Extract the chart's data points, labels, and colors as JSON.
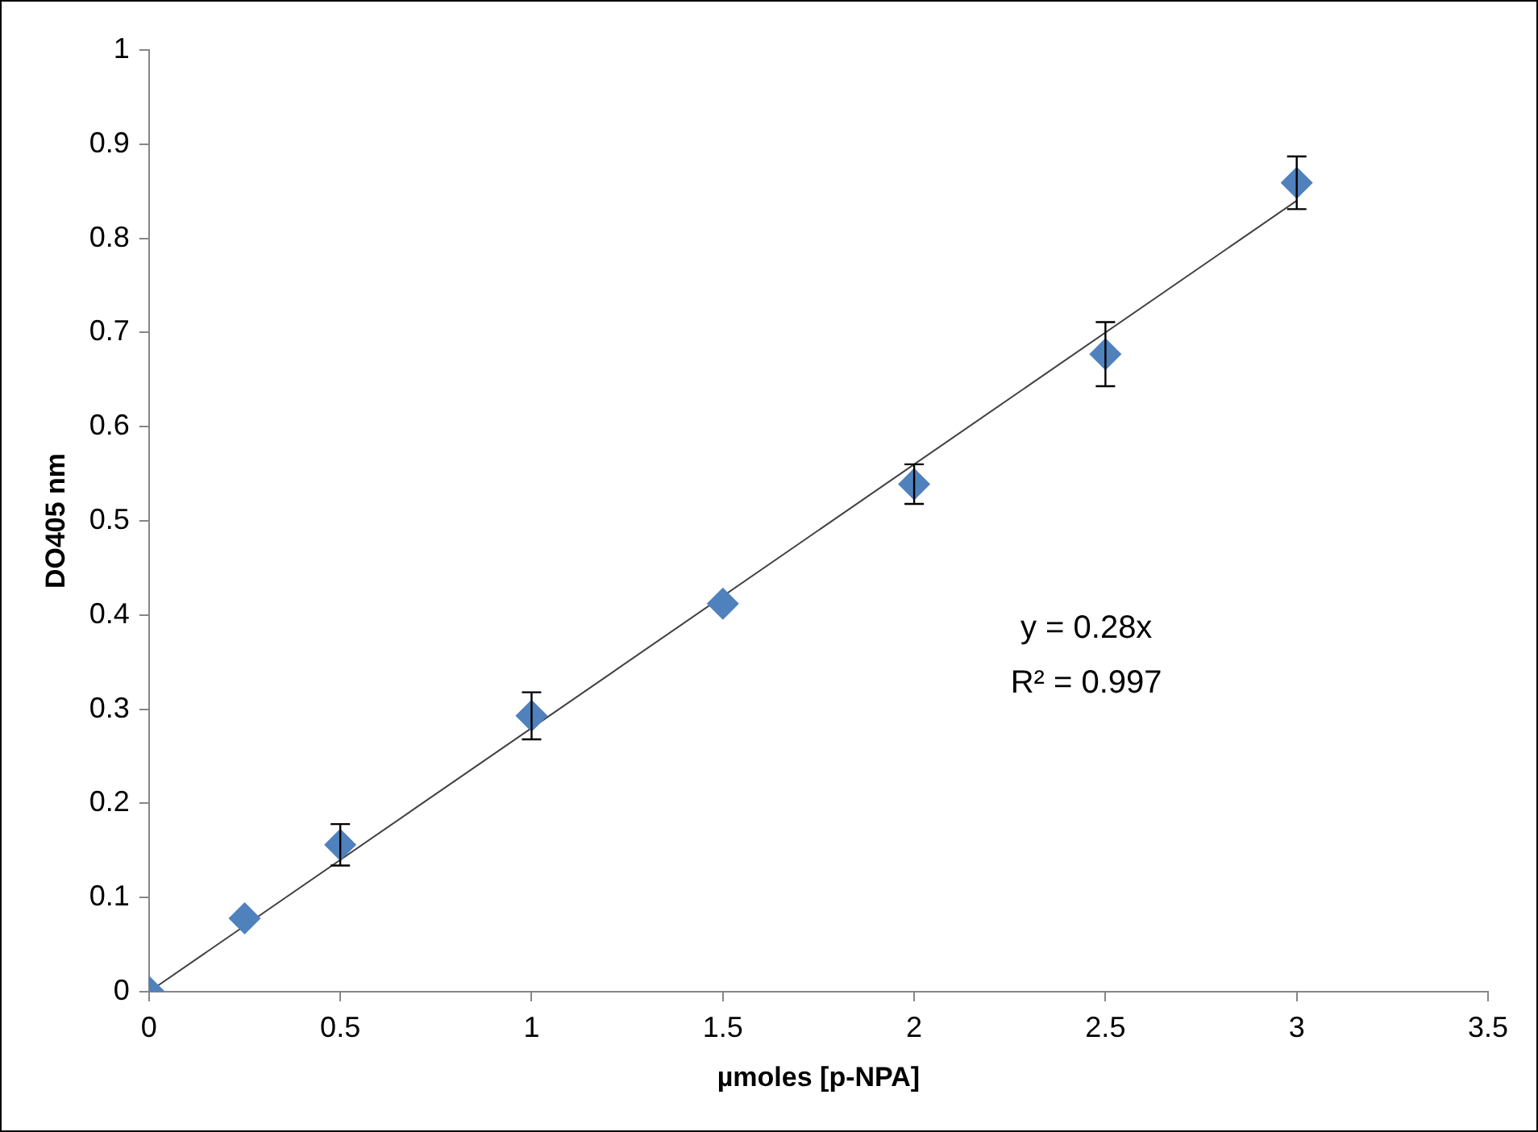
{
  "chart_data": {
    "type": "scatter",
    "xlabel": "µmoles [p-NPA]",
    "ylabel": "DO405 nm",
    "xlim": [
      0,
      3.5
    ],
    "xticks": [
      0,
      0.5,
      1,
      1.5,
      2,
      2.5,
      3,
      3.5
    ],
    "ylim": [
      0,
      1
    ],
    "yticks": [
      0,
      0.1,
      0.2,
      0.3,
      0.4,
      0.5,
      0.6,
      0.7,
      0.8,
      0.9,
      1
    ],
    "grid": false,
    "legend": false,
    "marker": "diamond",
    "series": [
      {
        "type": "scatter",
        "color": "#4f81bd",
        "x": [
          0,
          0.25,
          0.5,
          1,
          1.5,
          2,
          2.5,
          3
        ],
        "values": [
          0,
          0.078,
          0.156,
          0.293,
          0.412,
          0.539,
          0.677,
          0.859
        ],
        "errors": [
          null,
          null,
          0.022,
          0.025,
          null,
          0.021,
          0.034,
          0.028
        ]
      },
      {
        "type": "line",
        "color": "#404040",
        "marker": "none",
        "x": [
          0,
          3
        ],
        "values": [
          0,
          0.84
        ]
      }
    ],
    "annotations": [
      "y = 0.28x",
      "R² = 0.997"
    ]
  }
}
